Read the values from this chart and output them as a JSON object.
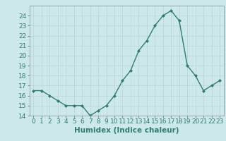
{
  "x": [
    0,
    1,
    2,
    3,
    4,
    5,
    6,
    7,
    8,
    9,
    10,
    11,
    12,
    13,
    14,
    15,
    16,
    17,
    18,
    19,
    20,
    21,
    22,
    23
  ],
  "y": [
    16.5,
    16.5,
    16.0,
    15.5,
    15.0,
    15.0,
    15.0,
    14.0,
    14.5,
    15.0,
    16.0,
    17.5,
    18.5,
    20.5,
    21.5,
    23.0,
    24.0,
    24.5,
    23.5,
    19.0,
    18.0,
    16.5,
    17.0,
    17.5
  ],
  "line_color": "#2e7d6e",
  "marker": "D",
  "marker_size": 2,
  "bg_color": "#cce8ea",
  "grid_color": "#b8d4d6",
  "xlabel": "Humidex (Indice chaleur)",
  "xlim": [
    -0.5,
    23.5
  ],
  "ylim": [
    14,
    25
  ],
  "yticks": [
    14,
    15,
    16,
    17,
    18,
    19,
    20,
    21,
    22,
    23,
    24
  ],
  "xticks": [
    0,
    1,
    2,
    3,
    4,
    5,
    6,
    7,
    8,
    9,
    10,
    11,
    12,
    13,
    14,
    15,
    16,
    17,
    18,
    19,
    20,
    21,
    22,
    23
  ],
  "tick_label_size": 6.5,
  "xlabel_size": 7.5,
  "line_width": 1.0
}
